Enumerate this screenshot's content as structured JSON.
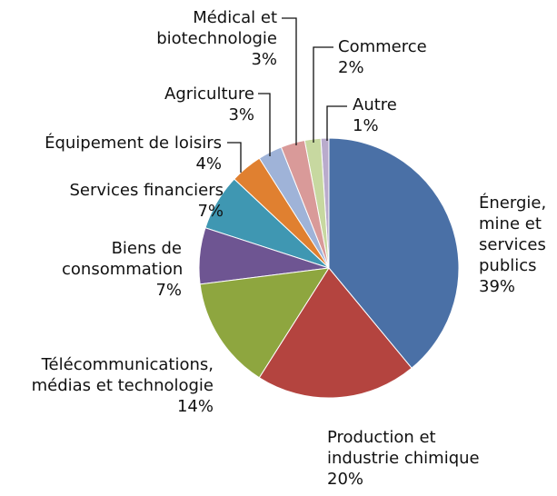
{
  "chart_data": {
    "type": "pie",
    "categories": [
      "Énergie, mine et services publics",
      "Production et industrie chimique",
      "Télécommunications, médias et technologie",
      "Biens de consommation",
      "Services financiers",
      "Équipement de loisirs",
      "Agriculture",
      "Médical et biotechnologie",
      "Commerce",
      "Autre"
    ],
    "values": [
      39,
      20,
      14,
      7,
      7,
      4,
      3,
      3,
      2,
      1
    ],
    "value_labels": [
      "39%",
      "20%",
      "14%",
      "7%",
      "7%",
      "4%",
      "3%",
      "3%",
      "2%",
      "1%"
    ],
    "colors": [
      "#4a70a6",
      "#b4443f",
      "#8ea63f",
      "#6e5592",
      "#3f97b2",
      "#e08030",
      "#9fb3d8",
      "#d99a99",
      "#c7d8a0",
      "#b9abcc"
    ]
  }
}
